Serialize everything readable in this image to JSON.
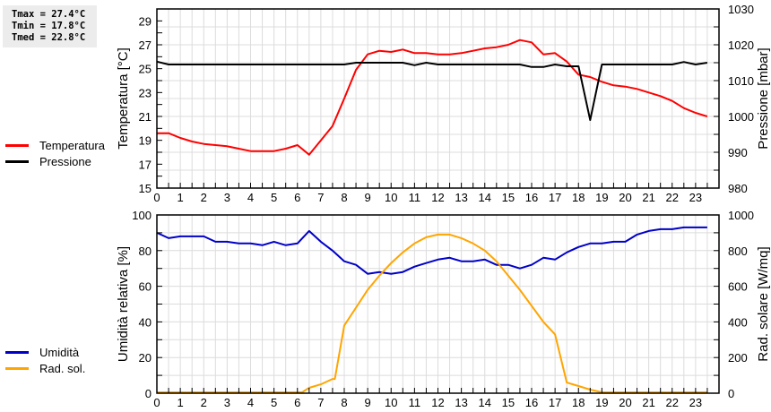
{
  "stats": {
    "tmax": "Tmax = 27.4°C",
    "tmin": "Tmin = 17.8°C",
    "tmed": "Tmed = 22.8°C"
  },
  "legend_top": [
    {
      "label": "Temperatura",
      "color": "#ff0000"
    },
    {
      "label": "Pressione",
      "color": "#000000"
    }
  ],
  "legend_bottom": [
    {
      "label": "Umidità",
      "color": "#0000c8"
    },
    {
      "label": "Rad. sol.",
      "color": "#ffa500"
    }
  ],
  "chart_data": [
    {
      "type": "line",
      "title": "",
      "xlabel": "",
      "x_ticks": [
        "0",
        "1",
        "2",
        "3",
        "4",
        "5",
        "6",
        "7",
        "8",
        "9",
        "10",
        "11",
        "12",
        "13",
        "14",
        "15",
        "16",
        "17",
        "18",
        "19",
        "20",
        "21",
        "22",
        "23"
      ],
      "xlim": [
        0,
        24
      ],
      "ylabel": "Temperatura [°C]",
      "ylim": [
        15,
        30
      ],
      "y_ticks": [
        15,
        17,
        19,
        21,
        23,
        25,
        27,
        29
      ],
      "y2label": "Pressione [mbar]",
      "y2lim": [
        980,
        1030
      ],
      "y2_ticks": [
        980,
        990,
        1000,
        1010,
        1020,
        1030
      ],
      "grid": true,
      "legend_position": "left",
      "series": [
        {
          "name": "Temperatura",
          "axis": "left",
          "color": "#ff0000",
          "x": [
            0,
            0.5,
            1,
            1.5,
            2,
            2.5,
            3,
            3.5,
            4,
            4.5,
            5,
            5.5,
            6,
            6.5,
            7,
            7.5,
            8,
            8.5,
            9,
            9.5,
            10,
            10.5,
            11,
            11.5,
            12,
            12.5,
            13,
            13.5,
            14,
            14.5,
            15,
            15.5,
            16,
            16.5,
            17,
            17.5,
            18,
            18.5,
            19,
            19.5,
            20,
            20.5,
            21,
            21.5,
            22,
            22.5,
            23,
            23.5
          ],
          "values": [
            19.6,
            19.6,
            19.2,
            18.9,
            18.7,
            18.6,
            18.5,
            18.3,
            18.1,
            18.1,
            18.1,
            18.3,
            18.6,
            17.8,
            19.0,
            20.2,
            22.5,
            24.9,
            26.2,
            26.5,
            26.4,
            26.6,
            26.3,
            26.3,
            26.2,
            26.2,
            26.3,
            26.5,
            26.7,
            26.8,
            27.0,
            27.4,
            27.2,
            26.2,
            26.3,
            25.6,
            24.5,
            24.3,
            23.9,
            23.6,
            23.5,
            23.3,
            23.0,
            22.7,
            22.3,
            21.7,
            21.3,
            21.0
          ]
        },
        {
          "name": "Pressione",
          "axis": "right",
          "color": "#000000",
          "x": [
            0,
            0.5,
            1,
            2,
            3,
            4,
            5,
            6,
            7,
            8,
            8.5,
            9,
            10,
            10.5,
            11,
            11.5,
            12,
            13,
            14,
            15,
            15.5,
            16,
            16.5,
            17,
            17.5,
            18,
            18.5,
            19,
            20,
            21,
            22,
            22.5,
            23,
            23.5
          ],
          "values": [
            1015.3,
            1014.5,
            1014.5,
            1014.5,
            1014.5,
            1014.5,
            1014.5,
            1014.5,
            1014.5,
            1014.5,
            1015.0,
            1015.0,
            1015.0,
            1015.0,
            1014.3,
            1015.0,
            1014.5,
            1014.5,
            1014.5,
            1014.5,
            1014.5,
            1013.8,
            1013.8,
            1014.5,
            1014.0,
            1014.0,
            999.0,
            1014.5,
            1014.5,
            1014.5,
            1014.5,
            1015.2,
            1014.5,
            1015.0
          ]
        }
      ]
    },
    {
      "type": "line",
      "title": "",
      "xlabel": "",
      "x_ticks": [
        "0",
        "1",
        "2",
        "3",
        "4",
        "5",
        "6",
        "7",
        "8",
        "9",
        "10",
        "11",
        "12",
        "13",
        "14",
        "15",
        "16",
        "17",
        "18",
        "19",
        "20",
        "21",
        "22",
        "23"
      ],
      "xlim": [
        0,
        24
      ],
      "ylabel": "Umidità relativa [%]",
      "ylim": [
        0,
        100
      ],
      "y_ticks": [
        0,
        20,
        40,
        60,
        80,
        100
      ],
      "y2label": "Rad. solare [W/mq]",
      "y2lim": [
        0,
        1000
      ],
      "y2_ticks": [
        0,
        200,
        400,
        600,
        800,
        1000
      ],
      "grid": true,
      "legend_position": "left",
      "series": [
        {
          "name": "Umidità",
          "axis": "left",
          "color": "#0000c8",
          "x": [
            0,
            0.5,
            1,
            1.5,
            2,
            2.5,
            3,
            3.5,
            4,
            4.5,
            5,
            5.5,
            6,
            6.5,
            7,
            7.5,
            8,
            8.5,
            9,
            9.5,
            10,
            10.5,
            11,
            11.5,
            12,
            12.5,
            13,
            13.5,
            14,
            14.5,
            15,
            15.5,
            16,
            16.5,
            17,
            17.5,
            18,
            18.5,
            19,
            19.5,
            20,
            20.5,
            21,
            21.5,
            22,
            22.5,
            23,
            23.5
          ],
          "values": [
            90,
            87,
            88,
            88,
            88,
            85,
            85,
            84,
            84,
            83,
            85,
            83,
            84,
            91,
            85,
            80,
            74,
            72,
            67,
            68,
            67,
            68,
            71,
            73,
            75,
            76,
            74,
            74,
            75,
            72,
            72,
            70,
            72,
            76,
            75,
            79,
            82,
            84,
            84,
            85,
            85,
            89,
            91,
            92,
            92,
            93,
            93,
            93
          ]
        },
        {
          "name": "Rad. sol.",
          "axis": "right",
          "color": "#ffa500",
          "x": [
            0,
            1,
            2,
            3,
            4,
            5,
            6,
            6.2,
            6.5,
            7,
            7.5,
            7.6,
            8,
            8.5,
            9,
            9.5,
            10,
            10.5,
            11,
            11.5,
            12,
            12.5,
            13,
            13.5,
            14,
            14.5,
            15,
            15.5,
            16,
            16.5,
            17,
            17.5,
            18,
            18.5,
            19,
            20,
            21,
            22,
            23,
            23.5
          ],
          "values": [
            5,
            5,
            5,
            5,
            5,
            5,
            5,
            5,
            30,
            50,
            80,
            80,
            380,
            480,
            580,
            660,
            730,
            790,
            840,
            875,
            890,
            890,
            870,
            840,
            800,
            740,
            660,
            580,
            490,
            400,
            330,
            60,
            40,
            20,
            5,
            5,
            5,
            5,
            5,
            5
          ]
        }
      ]
    }
  ]
}
